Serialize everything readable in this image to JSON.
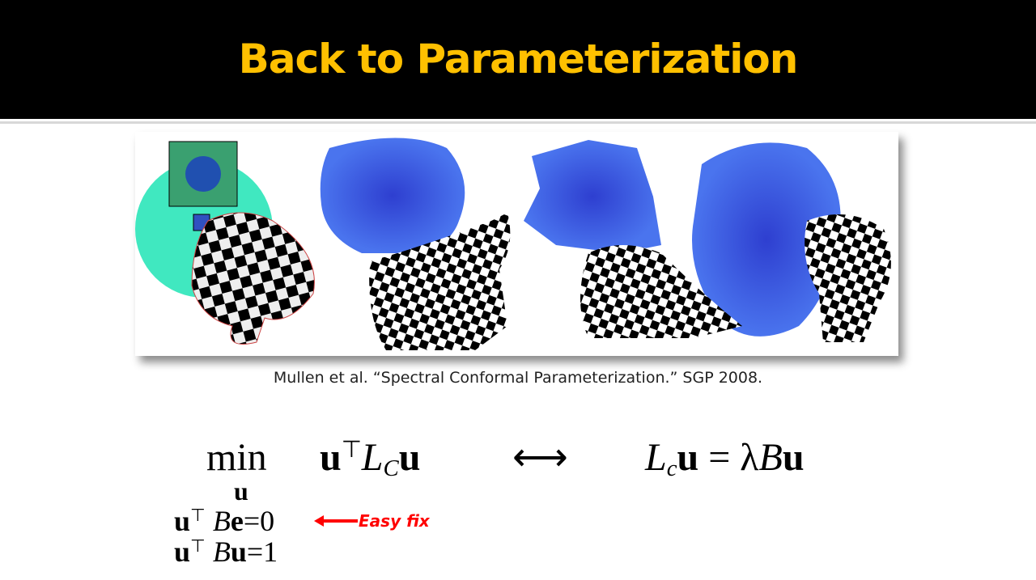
{
  "slide": {
    "title": "Back to Parameterization",
    "caption": "Mullen et al.  “Spectral Conformal Parameterization.”  SGP 2008."
  },
  "figure": {
    "description_icons": [
      "flattened-mesh-icon",
      "checkerboard-model-icon"
    ],
    "colors": {
      "map_blue": "#3a5be0",
      "map_cyan": "#40e0c0",
      "checker_black": "#000000"
    }
  },
  "math": {
    "min_op": "min",
    "min_sub": "u",
    "objective_u": "u",
    "objective_T": "⊤",
    "objective_L": "L",
    "objective_C": "C",
    "objective_u2": "u",
    "equiv": "⟷",
    "eig_L": "L",
    "eig_c": "c",
    "eig_u": "u",
    "eig_eq": " = λ",
    "eig_B": "B",
    "eig_u2": "u",
    "c1_u": "u",
    "c1_T": "⊤",
    "c1_B": " B",
    "c1_rest": "e",
    "c1_val": "=0",
    "c2_u": "u",
    "c2_T": "⊤",
    "c2_B": " B",
    "c2_rest": "u",
    "c2_val": "=1"
  },
  "annotation": {
    "label": "Easy fix",
    "color": "#ff0000"
  }
}
